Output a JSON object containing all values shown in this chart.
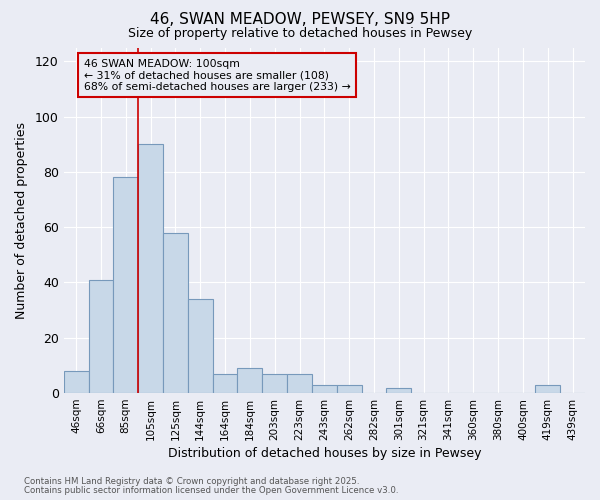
{
  "title_line1": "46, SWAN MEADOW, PEWSEY, SN9 5HP",
  "title_line2": "Size of property relative to detached houses in Pewsey",
  "xlabel": "Distribution of detached houses by size in Pewsey",
  "ylabel": "Number of detached properties",
  "categories": [
    "46sqm",
    "66sqm",
    "85sqm",
    "105sqm",
    "125sqm",
    "144sqm",
    "164sqm",
    "184sqm",
    "203sqm",
    "223sqm",
    "243sqm",
    "262sqm",
    "282sqm",
    "301sqm",
    "321sqm",
    "341sqm",
    "360sqm",
    "380sqm",
    "400sqm",
    "419sqm",
    "439sqm"
  ],
  "values": [
    8,
    41,
    78,
    90,
    58,
    34,
    7,
    9,
    7,
    7,
    3,
    3,
    0,
    2,
    0,
    0,
    0,
    0,
    0,
    3,
    0
  ],
  "bar_color": "#c8d8e8",
  "bar_edgecolor": "#7799bb",
  "bar_linewidth": 0.8,
  "vline_color": "#cc0000",
  "vline_x": 2.5,
  "annotation_line1": "46 SWAN MEADOW: 100sqm",
  "annotation_line2": "← 31% of detached houses are smaller (108)",
  "annotation_line3": "68% of semi-detached houses are larger (233) →",
  "annotation_box_edgecolor": "#cc0000",
  "ylim": [
    0,
    125
  ],
  "yticks": [
    0,
    20,
    40,
    60,
    80,
    100,
    120
  ],
  "background_color": "#eaecf4",
  "grid_color": "#ffffff",
  "footnote_line1": "Contains HM Land Registry data © Crown copyright and database right 2025.",
  "footnote_line2": "Contains public sector information licensed under the Open Government Licence v3.0."
}
